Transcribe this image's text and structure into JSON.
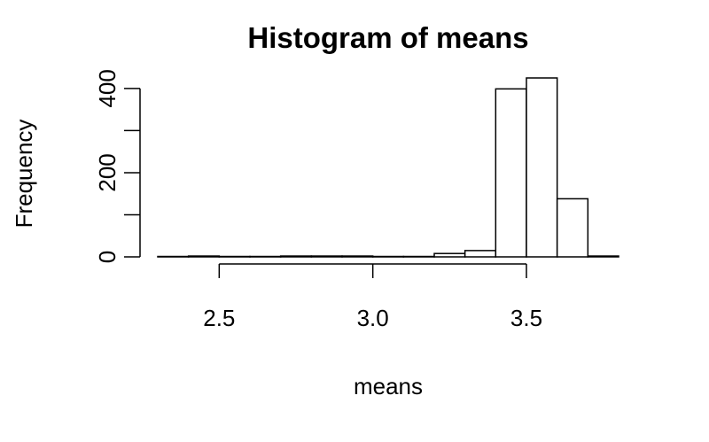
{
  "chart_data": {
    "type": "bar",
    "title": "Histogram of means",
    "xlabel": "means",
    "ylabel": "Frequency",
    "bin_width": 0.1,
    "bins": [
      {
        "start": 2.3,
        "end": 2.4,
        "count": 1
      },
      {
        "start": 2.4,
        "end": 2.5,
        "count": 2
      },
      {
        "start": 2.5,
        "end": 2.6,
        "count": 1
      },
      {
        "start": 2.6,
        "end": 2.7,
        "count": 1
      },
      {
        "start": 2.7,
        "end": 2.8,
        "count": 2
      },
      {
        "start": 2.8,
        "end": 2.9,
        "count": 2
      },
      {
        "start": 2.9,
        "end": 3.0,
        "count": 2
      },
      {
        "start": 3.0,
        "end": 3.1,
        "count": 1
      },
      {
        "start": 3.1,
        "end": 3.2,
        "count": 1
      },
      {
        "start": 3.2,
        "end": 3.3,
        "count": 8
      },
      {
        "start": 3.3,
        "end": 3.4,
        "count": 15
      },
      {
        "start": 3.4,
        "end": 3.5,
        "count": 399
      },
      {
        "start": 3.5,
        "end": 3.6,
        "count": 425
      },
      {
        "start": 3.6,
        "end": 3.7,
        "count": 138
      },
      {
        "start": 3.7,
        "end": 3.8,
        "count": 2
      }
    ],
    "x_axis": {
      "ticks": [
        2.5,
        3.0,
        3.5
      ],
      "tick_labels": [
        "2.5",
        "3.0",
        "3.5"
      ],
      "xlim": [
        2.3,
        3.8
      ]
    },
    "y_axis": {
      "ticks": [
        0,
        100,
        200,
        300,
        400
      ],
      "tick_labels": [
        "0",
        "",
        "200",
        "",
        "400"
      ],
      "ylim": [
        0,
        425
      ]
    },
    "grid": false,
    "bar_fill": "#ffffff",
    "bar_stroke": "#000000"
  }
}
